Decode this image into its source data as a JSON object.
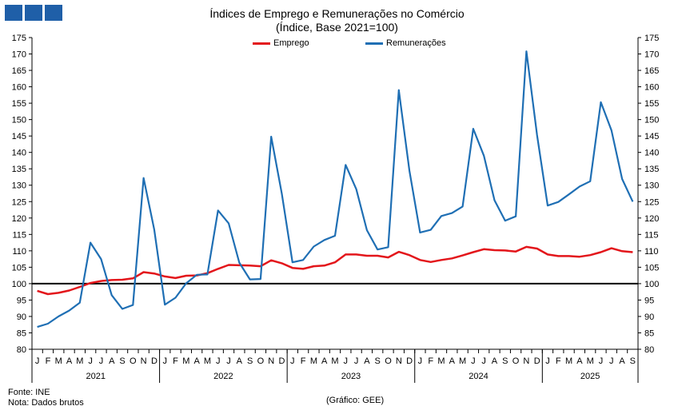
{
  "header": {
    "logo_icon": "ine-logo-blocks",
    "title": "Índices de Emprego e Remunerações no Comércio",
    "subtitle": "(Índice, Base 2021=100)"
  },
  "footer": {
    "source": "Fonte: INE",
    "note": "Nota: Dados brutos",
    "credit": "(Gráfico: GEE)"
  },
  "chart_data": {
    "type": "line",
    "title": "Índices de Emprego e Remunerações no Comércio",
    "subtitle": "(Índice, Base 2021=100)",
    "ylim": [
      80,
      175
    ],
    "yticks": [
      80,
      85,
      90,
      95,
      100,
      105,
      110,
      115,
      120,
      125,
      130,
      135,
      140,
      145,
      150,
      155,
      160,
      165,
      170,
      175
    ],
    "reference_line": 100,
    "grid": false,
    "legend_position": "top",
    "month_labels": [
      "J",
      "F",
      "M",
      "A",
      "M",
      "J",
      "J",
      "A",
      "S",
      "O",
      "N",
      "D"
    ],
    "years": [
      "2021",
      "2022",
      "2023",
      "2024",
      "2025"
    ],
    "months_total": 57,
    "series": [
      {
        "name": "Emprego",
        "color": "#e3161b",
        "values": [
          97.8,
          96.8,
          97.2,
          97.9,
          99.0,
          100.2,
          100.8,
          101.1,
          101.2,
          101.6,
          103.5,
          103.1,
          102.2,
          101.7,
          102.4,
          102.5,
          103.2,
          104.5,
          105.7,
          105.6,
          105.5,
          105.3,
          107.1,
          106.2,
          104.8,
          104.5,
          105.3,
          105.5,
          106.5,
          108.9,
          108.9,
          108.5,
          108.5,
          108.0,
          109.7,
          108.7,
          107.2,
          106.6,
          107.2,
          107.7,
          108.6,
          109.6,
          110.5,
          110.2,
          110.1,
          109.8,
          111.2,
          110.7,
          108.9,
          108.4,
          108.4,
          108.2,
          108.7,
          109.6,
          110.8,
          109.9,
          109.6
        ]
      },
      {
        "name": "Remunerações",
        "color": "#1f6fb4",
        "values": [
          86.8,
          87.8,
          90.0,
          91.8,
          94.2,
          112.5,
          107.5,
          96.5,
          92.3,
          93.5,
          132.2,
          116.5,
          93.6,
          95.7,
          100.1,
          102.7,
          102.8,
          122.3,
          118.4,
          106.4,
          101.3,
          101.4,
          144.8,
          127.4,
          106.5,
          107.2,
          111.3,
          113.3,
          114.6,
          136.2,
          128.8,
          116.3,
          110.4,
          111.1,
          159.0,
          134.4,
          115.6,
          116.4,
          120.6,
          121.5,
          123.5,
          147.2,
          139.0,
          125.4,
          119.2,
          120.5,
          170.8,
          145.3,
          123.8,
          124.9,
          127.2,
          129.6,
          131.2,
          155.3,
          146.7,
          131.9,
          125.0
        ]
      }
    ]
  }
}
